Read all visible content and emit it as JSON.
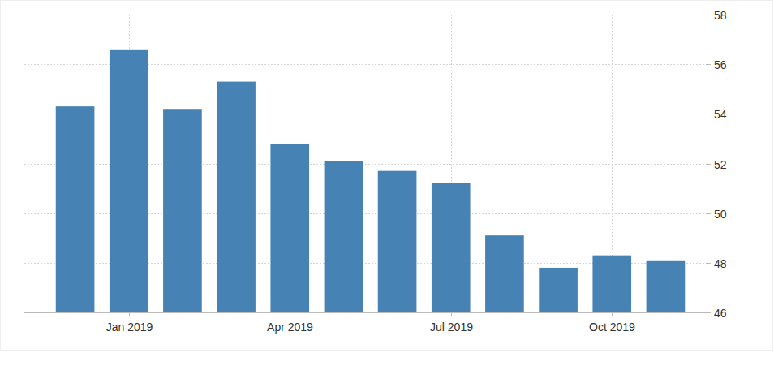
{
  "chart_data": {
    "type": "bar",
    "categories": [
      null,
      "Jan 2019",
      null,
      null,
      "Apr 2019",
      null,
      null,
      "Jul 2019",
      null,
      null,
      "Oct 2019",
      null
    ],
    "values": [
      54.3,
      56.6,
      54.2,
      55.3,
      52.8,
      52.1,
      51.7,
      51.2,
      49.1,
      47.8,
      48.3,
      48.1
    ],
    "color": "#4682b4",
    "ylim": [
      46,
      58
    ],
    "yticks": [
      46,
      48,
      50,
      52,
      54,
      56,
      58
    ],
    "grid": true
  }
}
